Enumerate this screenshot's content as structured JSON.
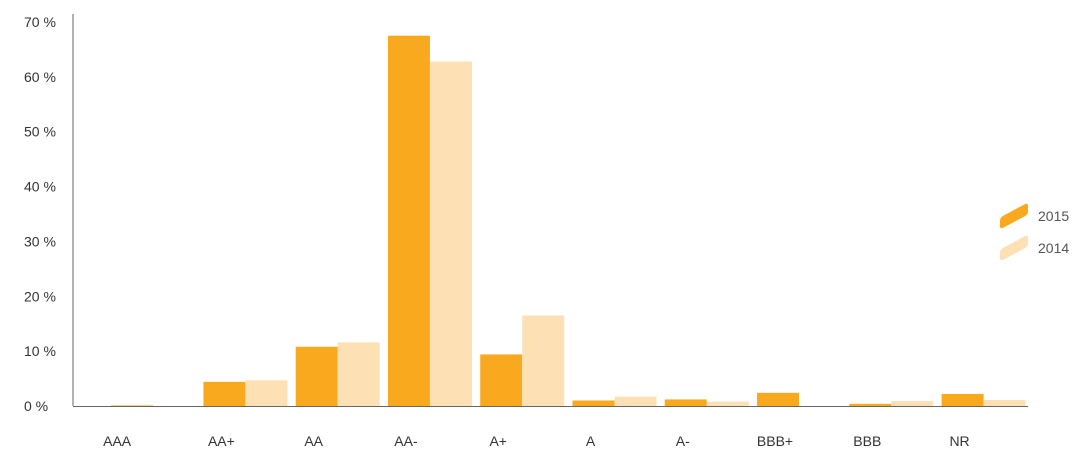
{
  "chart_data": {
    "type": "bar",
    "categories": [
      "AAA",
      "AA+",
      "AA",
      "AA-",
      "A+",
      "A",
      "A-",
      "BBB+",
      "BBB",
      "NR"
    ],
    "series": [
      {
        "name": "2015",
        "color": "#F9A91D",
        "values": [
          0.1,
          4.4,
          10.8,
          67.5,
          9.4,
          1.0,
          1.2,
          2.4,
          0.4,
          2.2
        ]
      },
      {
        "name": "2014",
        "color": "#FDE1B5",
        "values": [
          0.0,
          4.7,
          11.6,
          62.8,
          16.5,
          1.7,
          0.8,
          0.0,
          0.9,
          1.1
        ]
      }
    ],
    "yticks": [
      "0 %",
      "10 %",
      "20 %",
      "30 %",
      "40 %",
      "50 %",
      "60 %",
      "70 %"
    ],
    "ylim": [
      0,
      70
    ],
    "legend_position": "right",
    "grid": false
  }
}
